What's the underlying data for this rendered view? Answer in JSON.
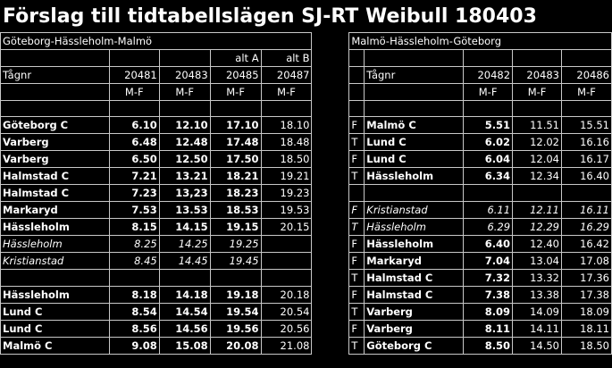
{
  "title": "Förslag till tidtabellslägen SJ-RT Weibull 180403",
  "left": {
    "header": "Göteborg-Hässleholm-Malmö",
    "alt": [
      "",
      "",
      "alt A",
      "alt B"
    ],
    "train_label": "Tågnr",
    "trains": [
      "20481",
      "20483",
      "20485",
      "20487"
    ],
    "days_label": [
      "M-F",
      "M-F",
      "M-F",
      "M-F"
    ],
    "rows": [
      {
        "station": "Göteborg C",
        "times": [
          "6.10",
          "12.10",
          "17.10",
          "18.10"
        ],
        "style": "b"
      },
      {
        "station": "Varberg",
        "times": [
          "6.48",
          "12.48",
          "17.48",
          "18.48"
        ],
        "style": "b"
      },
      {
        "station": "Varberg",
        "times": [
          "6.50",
          "12.50",
          "17.50",
          "18.50"
        ],
        "style": "b"
      },
      {
        "station": "Halmstad C",
        "times": [
          "7.21",
          "13.21",
          "18.21",
          "19.21"
        ],
        "style": "b"
      },
      {
        "station": "Halmstad C",
        "times": [
          "7.23",
          "13,23",
          "18.23",
          "19.23"
        ],
        "style": "b"
      },
      {
        "station": "Markaryd",
        "times": [
          "7.53",
          "13.53",
          "18.53",
          "19.53"
        ],
        "style": "b"
      },
      {
        "station": "Hässleholm",
        "times": [
          "8.15",
          "14.15",
          "19.15",
          "20.15"
        ],
        "style": "b"
      },
      {
        "station": "Hässleholm",
        "times": [
          "8.25",
          "14.25",
          "19.25",
          ""
        ],
        "style": "i"
      },
      {
        "station": "Kristianstad",
        "times": [
          "8.45",
          "14.45",
          "19.45",
          ""
        ],
        "style": "i"
      },
      {
        "station": "",
        "times": [
          "",
          "",
          "",
          ""
        ],
        "style": "b"
      },
      {
        "station": "Hässleholm",
        "times": [
          "8.18",
          "14.18",
          "19.18",
          "20.18"
        ],
        "style": "b"
      },
      {
        "station": "Lund C",
        "times": [
          "8.54",
          "14.54",
          "19.54",
          "20.54"
        ],
        "style": "b"
      },
      {
        "station": "Lund C",
        "times": [
          "8.56",
          "14.56",
          "19.56",
          "20.56"
        ],
        "style": "b"
      },
      {
        "station": "Malmö C",
        "times": [
          "9.08",
          "15.08",
          "20.08",
          "21.08"
        ],
        "style": "b"
      }
    ]
  },
  "right": {
    "header": "Malmö-Hässleholm-Göteborg",
    "train_label": "Tågnr",
    "trains": [
      "20482",
      "20483",
      "20486"
    ],
    "days_label": [
      "M-F",
      "M-F",
      "M-F"
    ],
    "rows": [
      {
        "flag": "F",
        "station": "Malmö C",
        "times": [
          "5.51",
          "11.51",
          "15.51"
        ],
        "style": "b"
      },
      {
        "flag": "T",
        "station": "Lund C",
        "times": [
          "6.02",
          "12.02",
          "16.16"
        ],
        "style": "b"
      },
      {
        "flag": "F",
        "station": "Lund C",
        "times": [
          "6.04",
          "12.04",
          "16.17"
        ],
        "style": "b"
      },
      {
        "flag": "T",
        "station": "Hässleholm",
        "times": [
          "6.34",
          "12.34",
          "16.40"
        ],
        "style": "b"
      },
      {
        "flag": "",
        "station": "",
        "times": [
          "",
          "",
          ""
        ],
        "style": "b"
      },
      {
        "flag": "F",
        "station": "Kristianstad",
        "times": [
          "6.11",
          "12.11",
          "16.11"
        ],
        "style": "i"
      },
      {
        "flag": "T",
        "station": "Hässleholm",
        "times": [
          "6.29",
          "12.29",
          "16.29"
        ],
        "style": "i"
      },
      {
        "flag": "F",
        "station": "Hässleholm",
        "times": [
          "6.40",
          "12.40",
          "16.42"
        ],
        "style": "b"
      },
      {
        "flag": "F",
        "station": "Markaryd",
        "times": [
          "7.04",
          "13.04",
          "17.08"
        ],
        "style": "b"
      },
      {
        "flag": "T",
        "station": "Halmstad C",
        "times": [
          "7.32",
          "13.32",
          "17.36"
        ],
        "style": "b"
      },
      {
        "flag": "F",
        "station": "Halmstad C",
        "times": [
          "7.38",
          "13.38",
          "17.38"
        ],
        "style": "b"
      },
      {
        "flag": "T",
        "station": "Varberg",
        "times": [
          "8.09",
          "14.09",
          "18.09"
        ],
        "style": "b"
      },
      {
        "flag": "F",
        "station": "Varberg",
        "times": [
          "8.11",
          "14.11",
          "18.11"
        ],
        "style": "b"
      },
      {
        "flag": "T",
        "station": "Göteborg C",
        "times": [
          "8.50",
          "14.50",
          "18.50"
        ],
        "style": "b"
      }
    ]
  }
}
